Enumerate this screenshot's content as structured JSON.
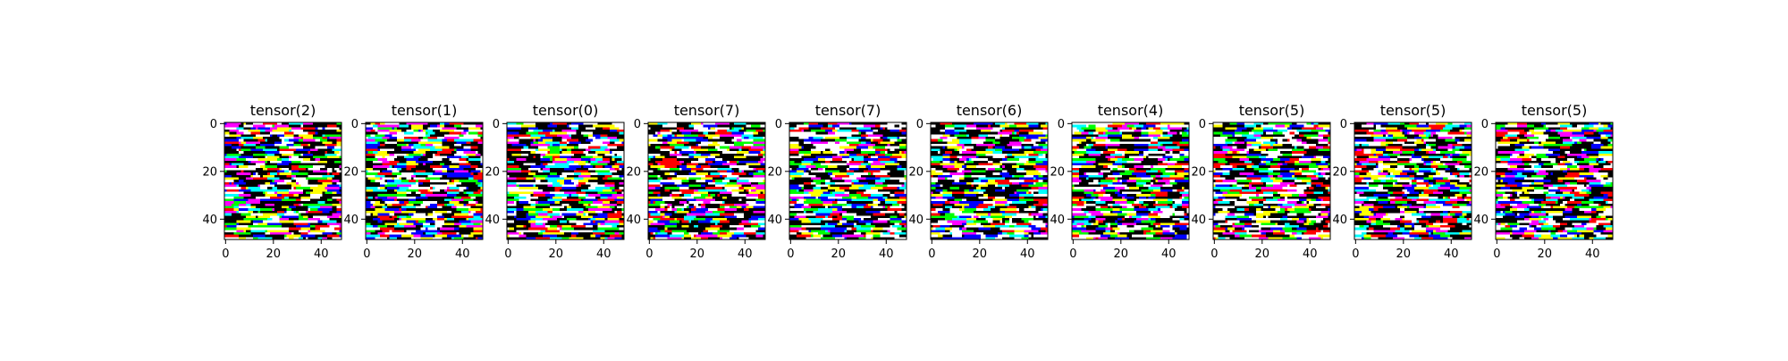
{
  "chart_data": {
    "type": "heatmap",
    "layout": "1 row x 10 image panels",
    "colors": [
      "#000000",
      "#ffffff",
      "#ff0000",
      "#00ff00",
      "#0000ff",
      "#ffff00",
      "#00ffff",
      "#ff00ff"
    ],
    "image_shape": [
      49,
      49
    ],
    "xlim": [
      -0.5,
      48.5
    ],
    "ylim": [
      48.5,
      -0.5
    ],
    "xticks": [
      0,
      20,
      40
    ],
    "yticks": [
      0,
      20,
      40
    ],
    "grid": false,
    "panels": [
      {
        "title": "tensor(2)"
      },
      {
        "title": "tensor(1)"
      },
      {
        "title": "tensor(0)"
      },
      {
        "title": "tensor(7)"
      },
      {
        "title": "tensor(7)"
      },
      {
        "title": "tensor(6)"
      },
      {
        "title": "tensor(4)"
      },
      {
        "title": "tensor(5)"
      },
      {
        "title": "tensor(5)"
      },
      {
        "title": "tensor(5)"
      }
    ]
  }
}
